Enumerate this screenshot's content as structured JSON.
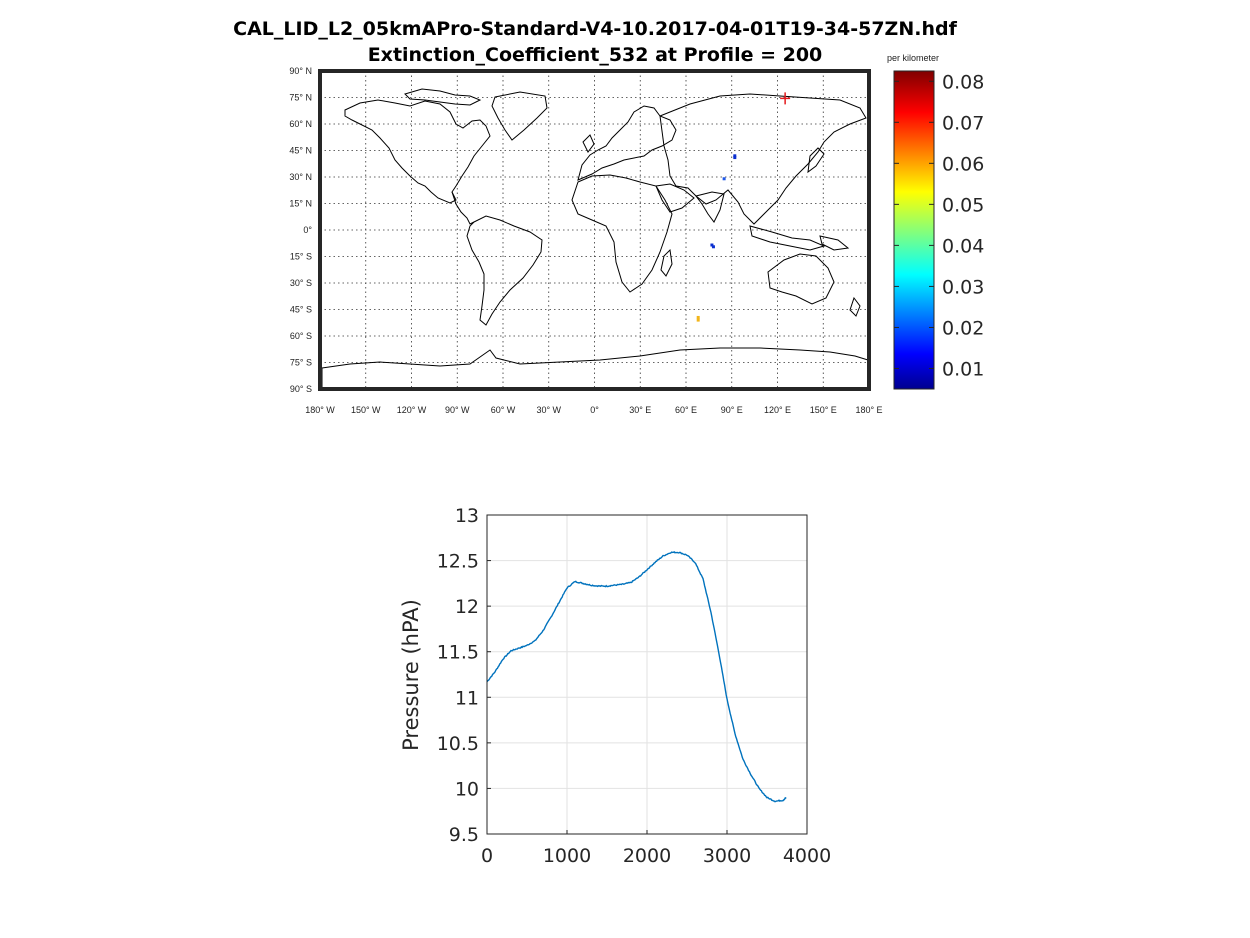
{
  "figure": {
    "title_line1": "CAL_LID_L2_05kmAPro-Standard-V4-10.2017-04-01T19-34-57ZN.hdf",
    "title_line2": "Extinction_Coefficient_532 at Profile = 200"
  },
  "chart_data": [
    {
      "type": "heatmap",
      "subtype": "world-map",
      "lat_ticks": [
        "90° N",
        "75° N",
        "60° N",
        "45° N",
        "30° N",
        "15° N",
        "0°",
        "15° S",
        "30° S",
        "45° S",
        "60° S",
        "75° S",
        "90° S"
      ],
      "lon_ticks": [
        "180° W",
        "150° W",
        "120° W",
        "90° W",
        "60° W",
        "30° W",
        "0°",
        "30° E",
        "60° E",
        "90° E",
        "120° E",
        "150° E",
        "180° E"
      ],
      "grid": true,
      "colorbar": {
        "label": "per kilometer",
        "ticks": [
          "0.08",
          "0.07",
          "0.06",
          "0.05",
          "0.04",
          "0.03",
          "0.02",
          "0.01"
        ],
        "tick_values": [
          0.08,
          0.07,
          0.06,
          0.05,
          0.04,
          0.03,
          0.02,
          0.01
        ],
        "range": [
          0.005,
          0.0825
        ],
        "colormap": "jet"
      },
      "markers": [
        {
          "lon": 125,
          "lat": 74.5,
          "symbol": "+",
          "color": "#e41a1c"
        }
      ],
      "points": [
        {
          "lon": 92,
          "lat": 42,
          "color": "#0b2fd0"
        },
        {
          "lon": 92,
          "lat": 41,
          "color": "#0b2fd0"
        },
        {
          "lon": 85,
          "lat": 29,
          "color": "#1f58e8"
        },
        {
          "lon": 77,
          "lat": -8.5,
          "color": "#0b2fd0"
        },
        {
          "lon": 78,
          "lat": -9.5,
          "color": "#0b2fd0"
        },
        {
          "lon": 68,
          "lat": -49.5,
          "color": "#f2b51a"
        },
        {
          "lon": 68,
          "lat": -51,
          "color": "#f2b51a"
        }
      ]
    },
    {
      "type": "line",
      "xlim": [
        0,
        4000
      ],
      "ylim": [
        9.5,
        13
      ],
      "xticks": [
        "0",
        "1000",
        "2000",
        "3000",
        "4000"
      ],
      "yticks": [
        "9.5",
        "10",
        "10.5",
        "11",
        "11.5",
        "12",
        "12.5",
        "13"
      ],
      "xlabel": "",
      "ylabel": "Pressure (hPA)",
      "grid": true,
      "color": "#0072bd",
      "x": [
        0,
        100,
        200,
        300,
        400,
        500,
        600,
        700,
        800,
        900,
        1000,
        1100,
        1200,
        1300,
        1400,
        1500,
        1600,
        1700,
        1800,
        1900,
        2000,
        2100,
        2200,
        2300,
        2400,
        2500,
        2600,
        2700,
        2800,
        2900,
        3000,
        3100,
        3200,
        3300,
        3400,
        3500,
        3600,
        3700,
        3740
      ],
      "y": [
        11.17,
        11.28,
        11.42,
        11.51,
        11.54,
        11.57,
        11.62,
        11.73,
        11.88,
        12.04,
        12.2,
        12.27,
        12.25,
        12.23,
        12.22,
        12.22,
        12.23,
        12.24,
        12.26,
        12.32,
        12.4,
        12.48,
        12.55,
        12.59,
        12.59,
        12.56,
        12.48,
        12.3,
        11.93,
        11.48,
        10.98,
        10.6,
        10.32,
        10.15,
        10.0,
        9.9,
        9.86,
        9.87,
        9.9
      ]
    }
  ]
}
